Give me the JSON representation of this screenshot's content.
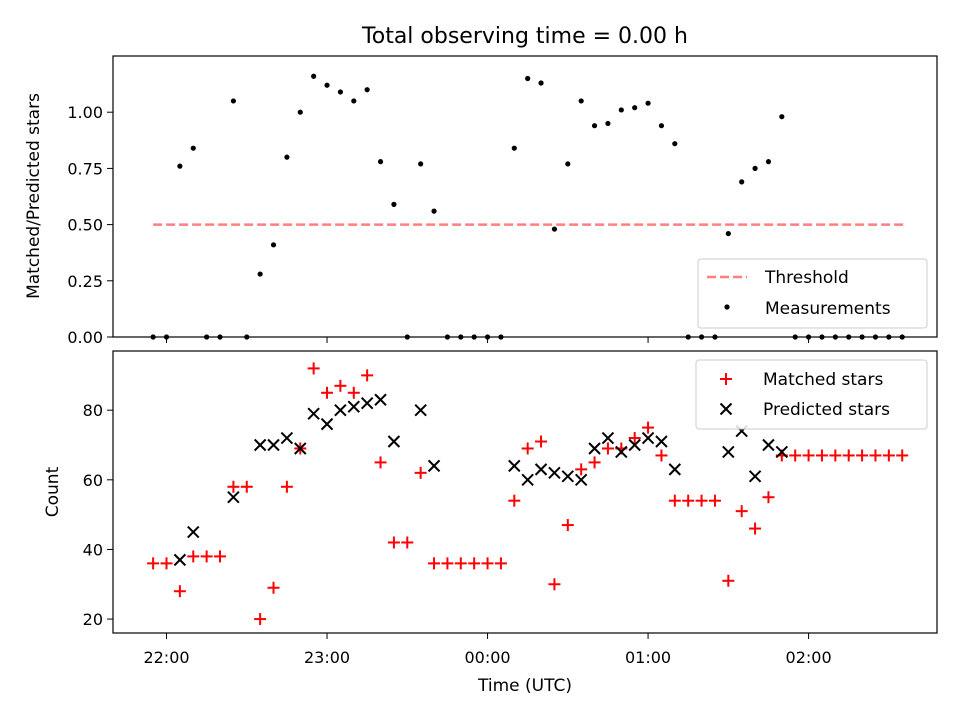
{
  "chart_data": [
    {
      "type": "scatter",
      "title": "Total observing time = 0.00 h",
      "xlabel": "",
      "ylabel": "Matched/Predicted stars",
      "x_unit": "time of day (UTC)",
      "xlim": [
        "21:40",
        "02:48"
      ],
      "ylim": [
        0,
        1.25
      ],
      "yticks": [
        "0.00",
        "0.25",
        "0.50",
        "0.75",
        "1.00"
      ],
      "show_xtick_labels": false,
      "grid": false,
      "legend_position": "lower right",
      "series": [
        {
          "name": "Threshold",
          "style": "dashed-line",
          "color": "#ff7f7f",
          "x": [
            "21:55",
            "02:36"
          ],
          "y": [
            0.5,
            0.5
          ]
        },
        {
          "name": "Measurements",
          "style": "dots",
          "color": "#000000",
          "points": [
            [
              "21:55",
              0.0
            ],
            [
              "22:00",
              0.0
            ],
            [
              "22:05",
              0.76
            ],
            [
              "22:10",
              0.84
            ],
            [
              "22:15",
              0.0
            ],
            [
              "22:20",
              0.0
            ],
            [
              "22:25",
              1.05
            ],
            [
              "22:30",
              0.0
            ],
            [
              "22:35",
              0.28
            ],
            [
              "22:40",
              0.41
            ],
            [
              "22:45",
              0.8
            ],
            [
              "22:50",
              1.0
            ],
            [
              "22:55",
              1.16
            ],
            [
              "23:00",
              1.12
            ],
            [
              "23:05",
              1.09
            ],
            [
              "23:10",
              1.05
            ],
            [
              "23:15",
              1.1
            ],
            [
              "23:20",
              0.78
            ],
            [
              "23:25",
              0.59
            ],
            [
              "23:30",
              0.0
            ],
            [
              "23:35",
              0.77
            ],
            [
              "23:40",
              0.56
            ],
            [
              "23:45",
              0.0
            ],
            [
              "23:50",
              0.0
            ],
            [
              "23:55",
              0.0
            ],
            [
              "00:00",
              0.0
            ],
            [
              "00:05",
              0.0
            ],
            [
              "00:10",
              0.84
            ],
            [
              "00:15",
              1.15
            ],
            [
              "00:20",
              1.13
            ],
            [
              "00:25",
              0.48
            ],
            [
              "00:30",
              0.77
            ],
            [
              "00:35",
              1.05
            ],
            [
              "00:40",
              0.94
            ],
            [
              "00:45",
              0.95
            ],
            [
              "00:50",
              1.01
            ],
            [
              "00:55",
              1.02
            ],
            [
              "01:00",
              1.04
            ],
            [
              "01:05",
              0.94
            ],
            [
              "01:10",
              0.86
            ],
            [
              "01:15",
              0.0
            ],
            [
              "01:20",
              0.0
            ],
            [
              "01:25",
              0.0
            ],
            [
              "01:30",
              0.46
            ],
            [
              "01:35",
              0.69
            ],
            [
              "01:40",
              0.75
            ],
            [
              "01:45",
              0.78
            ],
            [
              "01:50",
              0.98
            ],
            [
              "01:55",
              0.0
            ],
            [
              "02:00",
              0.0
            ],
            [
              "02:05",
              0.0
            ],
            [
              "02:10",
              0.0
            ],
            [
              "02:15",
              0.0
            ],
            [
              "02:20",
              0.0
            ],
            [
              "02:25",
              0.0
            ],
            [
              "02:30",
              0.0
            ],
            [
              "02:35",
              0.0
            ]
          ]
        }
      ]
    },
    {
      "type": "scatter",
      "title": "",
      "xlabel": "Time (UTC)",
      "ylabel": "Count",
      "x_unit": "time of day (UTC)",
      "xlim": [
        "21:40",
        "02:48"
      ],
      "ylim": [
        16,
        97
      ],
      "xticks": [
        "22:00",
        "23:00",
        "00:00",
        "01:00",
        "02:00"
      ],
      "yticks": [
        "20",
        "40",
        "60",
        "80"
      ],
      "grid": false,
      "legend_position": "upper right",
      "series": [
        {
          "name": "Matched stars",
          "marker": "plus",
          "color": "#ff0000",
          "points": [
            [
              "21:55",
              36
            ],
            [
              "22:00",
              36
            ],
            [
              "22:05",
              28
            ],
            [
              "22:10",
              38
            ],
            [
              "22:15",
              38
            ],
            [
              "22:20",
              38
            ],
            [
              "22:25",
              58
            ],
            [
              "22:30",
              58
            ],
            [
              "22:35",
              20
            ],
            [
              "22:40",
              29
            ],
            [
              "22:45",
              58
            ],
            [
              "22:50",
              69
            ],
            [
              "22:55",
              92
            ],
            [
              "23:00",
              85
            ],
            [
              "23:05",
              87
            ],
            [
              "23:10",
              85
            ],
            [
              "23:15",
              90
            ],
            [
              "23:20",
              65
            ],
            [
              "23:25",
              42
            ],
            [
              "23:30",
              42
            ],
            [
              "23:35",
              62
            ],
            [
              "23:40",
              36
            ],
            [
              "23:45",
              36
            ],
            [
              "23:50",
              36
            ],
            [
              "23:55",
              36
            ],
            [
              "00:00",
              36
            ],
            [
              "00:05",
              36
            ],
            [
              "00:10",
              54
            ],
            [
              "00:15",
              69
            ],
            [
              "00:20",
              71
            ],
            [
              "00:25",
              30
            ],
            [
              "00:30",
              47
            ],
            [
              "00:35",
              63
            ],
            [
              "00:40",
              65
            ],
            [
              "00:45",
              69
            ],
            [
              "00:50",
              69
            ],
            [
              "00:55",
              72
            ],
            [
              "01:00",
              75
            ],
            [
              "01:05",
              67
            ],
            [
              "01:10",
              54
            ],
            [
              "01:15",
              54
            ],
            [
              "01:20",
              54
            ],
            [
              "01:25",
              54
            ],
            [
              "01:30",
              31
            ],
            [
              "01:35",
              51
            ],
            [
              "01:40",
              46
            ],
            [
              "01:45",
              55
            ],
            [
              "01:50",
              67
            ],
            [
              "01:55",
              67
            ],
            [
              "02:00",
              67
            ],
            [
              "02:05",
              67
            ],
            [
              "02:10",
              67
            ],
            [
              "02:15",
              67
            ],
            [
              "02:20",
              67
            ],
            [
              "02:25",
              67
            ],
            [
              "02:30",
              67
            ],
            [
              "02:35",
              67
            ]
          ]
        },
        {
          "name": "Predicted stars",
          "marker": "x",
          "color": "#000000",
          "points": [
            [
              "22:05",
              37
            ],
            [
              "22:10",
              45
            ],
            [
              "22:25",
              55
            ],
            [
              "22:35",
              70
            ],
            [
              "22:40",
              70
            ],
            [
              "22:45",
              72
            ],
            [
              "22:50",
              69
            ],
            [
              "22:55",
              79
            ],
            [
              "23:00",
              76
            ],
            [
              "23:05",
              80
            ],
            [
              "23:10",
              81
            ],
            [
              "23:15",
              82
            ],
            [
              "23:20",
              83
            ],
            [
              "23:25",
              71
            ],
            [
              "23:35",
              80
            ],
            [
              "23:40",
              64
            ],
            [
              "00:10",
              64
            ],
            [
              "00:15",
              60
            ],
            [
              "00:20",
              63
            ],
            [
              "00:25",
              62
            ],
            [
              "00:30",
              61
            ],
            [
              "00:35",
              60
            ],
            [
              "00:40",
              69
            ],
            [
              "00:45",
              72
            ],
            [
              "00:50",
              68
            ],
            [
              "00:55",
              70
            ],
            [
              "01:00",
              72
            ],
            [
              "01:05",
              71
            ],
            [
              "01:10",
              63
            ],
            [
              "01:30",
              68
            ],
            [
              "01:35",
              74
            ],
            [
              "01:40",
              61
            ],
            [
              "01:45",
              70
            ],
            [
              "01:50",
              68
            ]
          ]
        }
      ]
    }
  ]
}
